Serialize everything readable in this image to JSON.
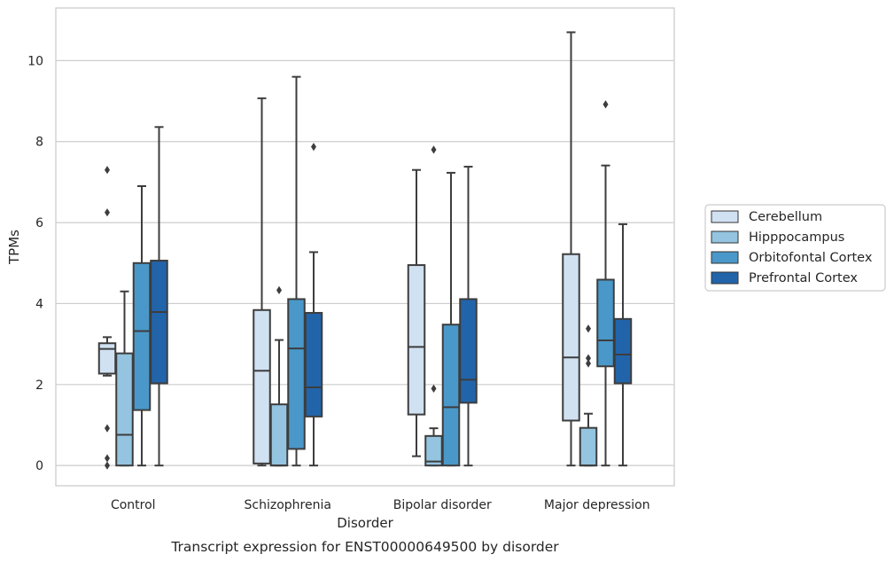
{
  "chart_data": {
    "type": "box",
    "caption": "Transcript expression for ENST00000649500 by disorder",
    "xlabel": "Disorder",
    "ylabel": "TPMs",
    "ylim": [
      -0.5,
      11.3
    ],
    "yticks": [
      0,
      2,
      4,
      6,
      8,
      10
    ],
    "grid": "horizontal",
    "legend_placement": "right",
    "categories": [
      "Control",
      "Schizophrenia",
      "Bipolar disorder",
      "Major depression"
    ],
    "series": [
      {
        "name": "Cerebellum",
        "color": "#d0e1f2",
        "boxes": [
          {
            "whislo": 2.22,
            "q1": 2.27,
            "med": 2.88,
            "q3": 3.02,
            "whishi": 3.17,
            "fliers": [
              7.3,
              6.25,
              0.92,
              0.18,
              0.0
            ]
          },
          {
            "whislo": 0.0,
            "q1": 0.05,
            "med": 2.34,
            "q3": 3.84,
            "whishi": 9.07,
            "fliers": []
          },
          {
            "whislo": 0.23,
            "q1": 1.26,
            "med": 2.93,
            "q3": 4.95,
            "whishi": 7.3,
            "fliers": []
          },
          {
            "whislo": 0.0,
            "q1": 1.11,
            "med": 2.67,
            "q3": 5.22,
            "whishi": 10.7,
            "fliers": []
          }
        ]
      },
      {
        "name": "Hipppocampus",
        "color": "#94c4df",
        "boxes": [
          {
            "whislo": 0.0,
            "q1": 0.0,
            "med": 0.76,
            "q3": 2.77,
            "whishi": 4.3,
            "fliers": []
          },
          {
            "whislo": 0.0,
            "q1": 0.0,
            "med": 0.0,
            "q3": 1.51,
            "whishi": 3.1,
            "fliers": [
              4.33
            ]
          },
          {
            "whislo": 0.0,
            "q1": 0.0,
            "med": 0.1,
            "q3": 0.73,
            "whishi": 0.92,
            "fliers": [
              1.9,
              7.8
            ]
          },
          {
            "whislo": 0.0,
            "q1": 0.0,
            "med": 0.0,
            "q3": 0.93,
            "whishi": 1.28,
            "fliers": [
              3.38,
              2.65,
              2.52
            ]
          }
        ]
      },
      {
        "name": "Orbitofontal Cortex",
        "color": "#4a98c9",
        "boxes": [
          {
            "whislo": 0.0,
            "q1": 1.37,
            "med": 3.32,
            "q3": 5.0,
            "whishi": 6.9,
            "fliers": []
          },
          {
            "whislo": 0.0,
            "q1": 0.41,
            "med": 2.89,
            "q3": 4.11,
            "whishi": 9.6,
            "fliers": []
          },
          {
            "whislo": 0.0,
            "q1": 0.0,
            "med": 1.44,
            "q3": 3.48,
            "whishi": 7.23,
            "fliers": []
          },
          {
            "whislo": 0.0,
            "q1": 2.45,
            "med": 3.09,
            "q3": 4.59,
            "whishi": 7.41,
            "fliers": [
              8.92
            ]
          }
        ]
      },
      {
        "name": "Prefrontal Cortex",
        "color": "#2264aa",
        "boxes": [
          {
            "whislo": 0.0,
            "q1": 2.03,
            "med": 3.79,
            "q3": 5.06,
            "whishi": 8.36,
            "fliers": []
          },
          {
            "whislo": 0.0,
            "q1": 1.21,
            "med": 1.93,
            "q3": 3.77,
            "whishi": 5.27,
            "fliers": [
              7.87
            ]
          },
          {
            "whislo": 0.0,
            "q1": 1.55,
            "med": 2.12,
            "q3": 4.11,
            "whishi": 7.38,
            "fliers": []
          },
          {
            "whislo": 0.0,
            "q1": 2.03,
            "med": 2.74,
            "q3": 3.62,
            "whishi": 5.96,
            "fliers": []
          }
        ]
      }
    ]
  }
}
